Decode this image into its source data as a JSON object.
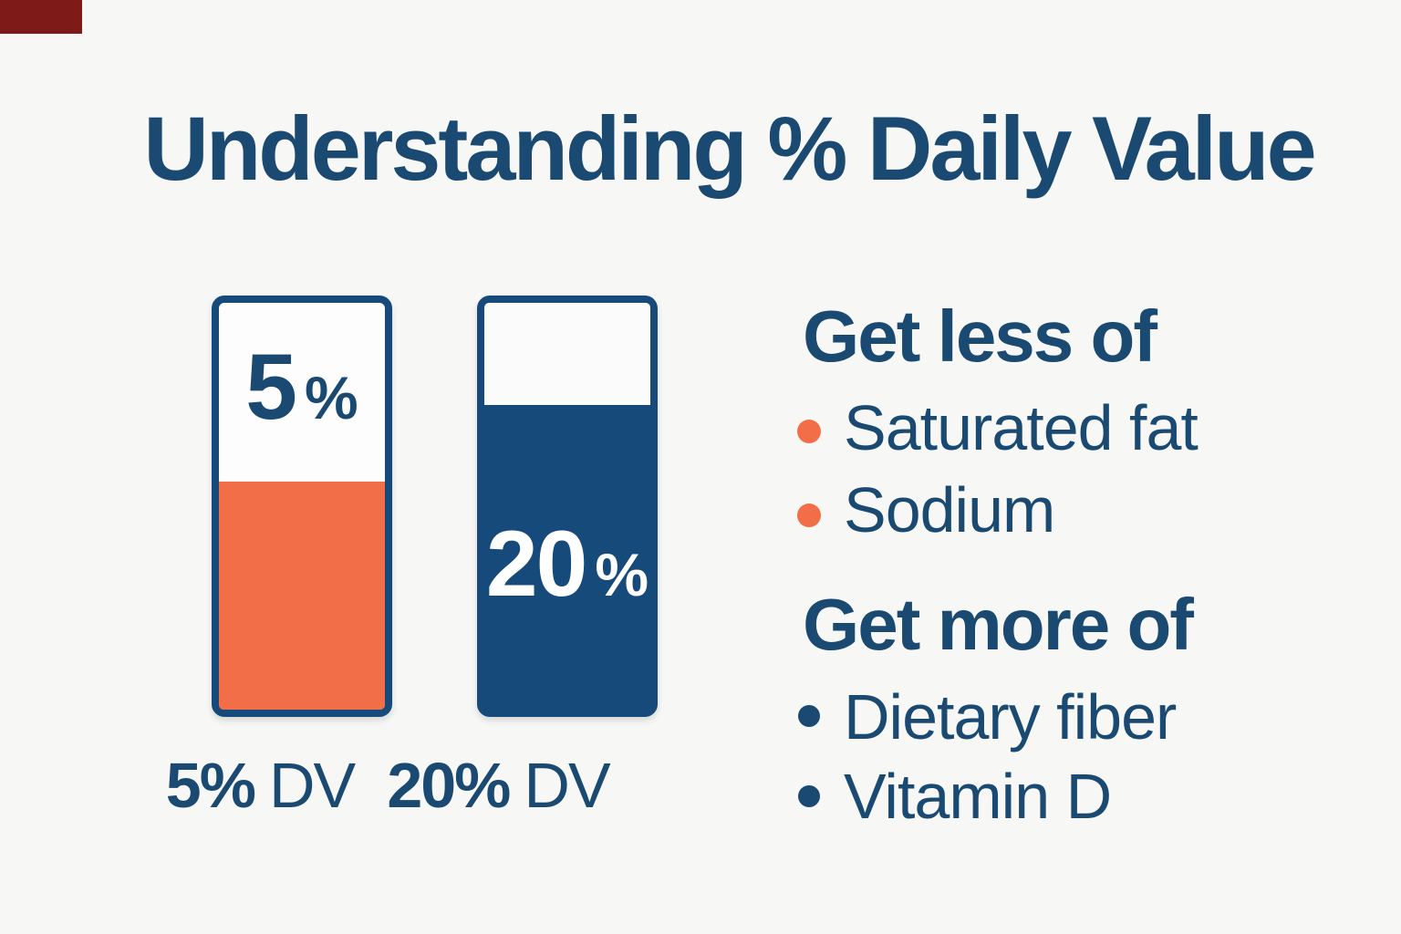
{
  "page": {
    "background": "#f7f7f5"
  },
  "corner_mark": {
    "color": "#7e1a18"
  },
  "title": {
    "text": "Understanding % Daily Value",
    "color": "#1a4971"
  },
  "bars": [
    {
      "name": "5% DV bar",
      "value_number": "5",
      "percent_sign": "%",
      "caption_number": "5%",
      "caption_suffix": "DV",
      "fill_color": "#f26e48",
      "empty_color": "#fdfdfd"
    },
    {
      "name": "20% DV bar",
      "value_number": "20",
      "percent_sign": "%",
      "caption_number": "20%",
      "caption_suffix": "DV",
      "fill_color": "#164a7a",
      "empty_color": "#fafbfa"
    }
  ],
  "sections": [
    {
      "heading": "Get less of",
      "bullet_color": "#f26e48",
      "items": [
        "Saturated fat",
        "Sodium"
      ]
    },
    {
      "heading": "Get more of",
      "bullet_color": "#1a4971",
      "items": [
        "Dietary fiber",
        "Vitamin D"
      ]
    }
  ],
  "chart_data": {
    "type": "bar",
    "title": "Understanding % Daily Value",
    "categories": [
      "5% DV",
      "20% DV"
    ],
    "values": [
      5,
      20
    ],
    "bar_labels": [
      "5%",
      "20%"
    ],
    "bar_colors": [
      "#f26e48",
      "#164a7a"
    ],
    "fill_fraction_shown": [
      0.56,
      0.75
    ],
    "legend_position": "right",
    "side_lists": [
      {
        "heading": "Get less of",
        "items": [
          "Saturated fat",
          "Sodium"
        ],
        "bullet_color": "#f26e48"
      },
      {
        "heading": "Get more of",
        "items": [
          "Dietary fiber",
          "Vitamin D"
        ],
        "bullet_color": "#1a4971"
      }
    ]
  }
}
